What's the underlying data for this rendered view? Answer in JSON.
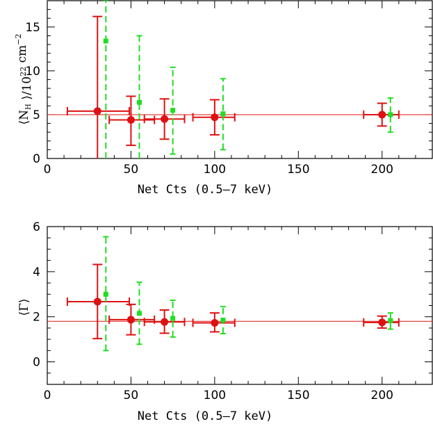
{
  "colors": {
    "red": "#dd1111",
    "green": "#22dd22",
    "axis": "#000000"
  },
  "chart_data": [
    {
      "type": "scatter",
      "title": "",
      "xlabel": "Net Cts (0.5–7 keV)",
      "ylabel_parts": {
        "open": "⟨N",
        "sub": "H",
        "mid": " ⟩/10",
        "sup1": "22",
        "unit": " cm",
        "sup2": "−2"
      },
      "xlim": [
        0,
        230
      ],
      "ylim": [
        0,
        18
      ],
      "xticks": [
        0,
        50,
        100,
        150,
        200
      ],
      "yticks": [
        0,
        5,
        10,
        15
      ],
      "grid": false,
      "reference_line": 5.0,
      "series": [
        {
          "style": "red-circles-solid",
          "points": [
            {
              "x": 30,
              "y": 5.4,
              "xlo": 12,
              "xhi": 49,
              "ylo": 0.0,
              "yhi": 16.2
            },
            {
              "x": 50,
              "y": 4.4,
              "xlo": 37,
              "xhi": 64,
              "ylo": 1.5,
              "yhi": 7.1
            },
            {
              "x": 70,
              "y": 4.5,
              "xlo": 58,
              "xhi": 82,
              "ylo": 2.2,
              "yhi": 6.8
            },
            {
              "x": 100,
              "y": 4.7,
              "xlo": 87,
              "xhi": 112,
              "ylo": 2.7,
              "yhi": 6.7
            },
            {
              "x": 200,
              "y": 5.0,
              "xlo": 189,
              "xhi": 210,
              "ylo": 3.7,
              "yhi": 6.3
            }
          ]
        },
        {
          "style": "green-squares-dashed",
          "points": [
            {
              "x": 35,
              "y": 13.4,
              "ylo": 0.0,
              "yhi": 18.0
            },
            {
              "x": 55,
              "y": 6.4,
              "ylo": 0.0,
              "yhi": 14.0
            },
            {
              "x": 75,
              "y": 5.5,
              "ylo": 0.5,
              "yhi": 10.4
            },
            {
              "x": 105,
              "y": 5.1,
              "ylo": 1.0,
              "yhi": 9.1
            },
            {
              "x": 205,
              "y": 5.0,
              "ylo": 3.0,
              "yhi": 6.9
            }
          ]
        }
      ]
    },
    {
      "type": "scatter",
      "title": "",
      "xlabel": "Net Cts (0.5–7 keV)",
      "ylabel": "⟨Γ⟩",
      "xlim": [
        0,
        230
      ],
      "ylim": [
        -1,
        6
      ],
      "xticks": [
        0,
        50,
        100,
        150,
        200
      ],
      "yticks": [
        0,
        2,
        4,
        6
      ],
      "grid": false,
      "reference_line": 1.8,
      "series": [
        {
          "style": "red-circles-solid",
          "points": [
            {
              "x": 30,
              "y": 2.67,
              "xlo": 12,
              "xhi": 49,
              "ylo": 1.03,
              "yhi": 4.32
            },
            {
              "x": 50,
              "y": 1.87,
              "xlo": 37,
              "xhi": 64,
              "ylo": 1.2,
              "yhi": 2.55
            },
            {
              "x": 70,
              "y": 1.77,
              "xlo": 58,
              "xhi": 82,
              "ylo": 1.27,
              "yhi": 2.3
            },
            {
              "x": 100,
              "y": 1.73,
              "xlo": 87,
              "xhi": 112,
              "ylo": 1.33,
              "yhi": 2.17
            },
            {
              "x": 200,
              "y": 1.75,
              "xlo": 189,
              "xhi": 210,
              "ylo": 1.5,
              "yhi": 2.03
            }
          ]
        },
        {
          "style": "green-squares-dashed",
          "points": [
            {
              "x": 35,
              "y": 3.0,
              "ylo": 0.5,
              "yhi": 5.55
            },
            {
              "x": 55,
              "y": 2.15,
              "ylo": 0.78,
              "yhi": 3.53
            },
            {
              "x": 75,
              "y": 1.93,
              "ylo": 1.1,
              "yhi": 2.73
            },
            {
              "x": 105,
              "y": 1.85,
              "ylo": 1.25,
              "yhi": 2.45
            },
            {
              "x": 205,
              "y": 1.83,
              "ylo": 1.45,
              "yhi": 2.17
            }
          ]
        }
      ]
    }
  ]
}
